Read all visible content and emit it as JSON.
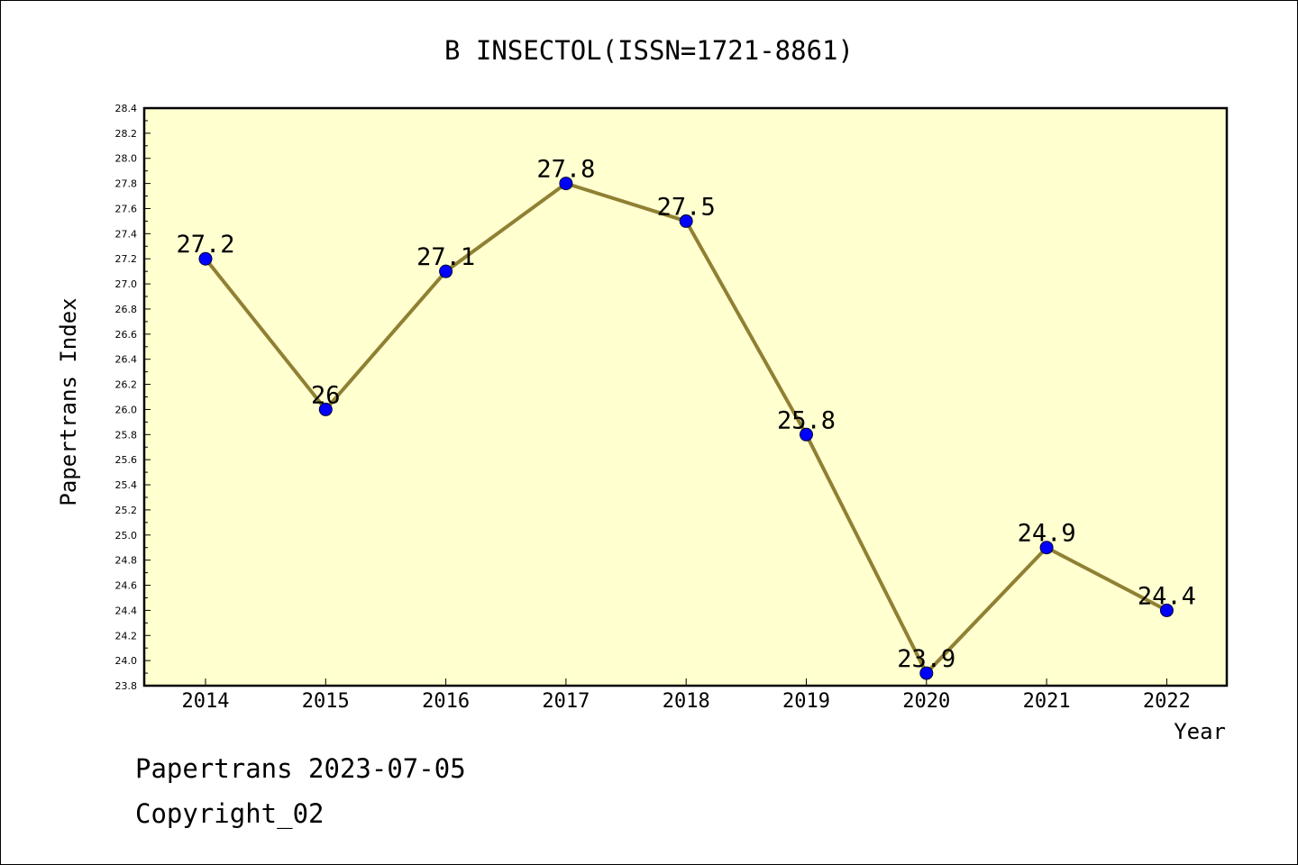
{
  "chart_data": {
    "type": "line",
    "title": "B INSECTOL(ISSN=1721-8861)",
    "xlabel": "Year",
    "ylabel": "Papertrans Index",
    "categories": [
      "2014",
      "2015",
      "2016",
      "2017",
      "2018",
      "2019",
      "2020",
      "2021",
      "2022"
    ],
    "series": [
      {
        "values": [
          27.2,
          26.0,
          27.1,
          27.8,
          27.5,
          25.8,
          23.9,
          24.9,
          24.4
        ],
        "labels": [
          "27.2",
          "26",
          "27.1",
          "27.8",
          "27.5",
          "25.8",
          "23.9",
          "24.9",
          "24.4"
        ],
        "line_color": "#8f8033",
        "marker_color": "#0000ff"
      }
    ],
    "ylim": [
      23.8,
      28.4
    ],
    "ytick_step": 0.2,
    "plot_background": "#ffffd0",
    "grid": false
  },
  "footer": {
    "line1": "Papertrans 2023-07-05",
    "line2": "Copyright_02"
  }
}
